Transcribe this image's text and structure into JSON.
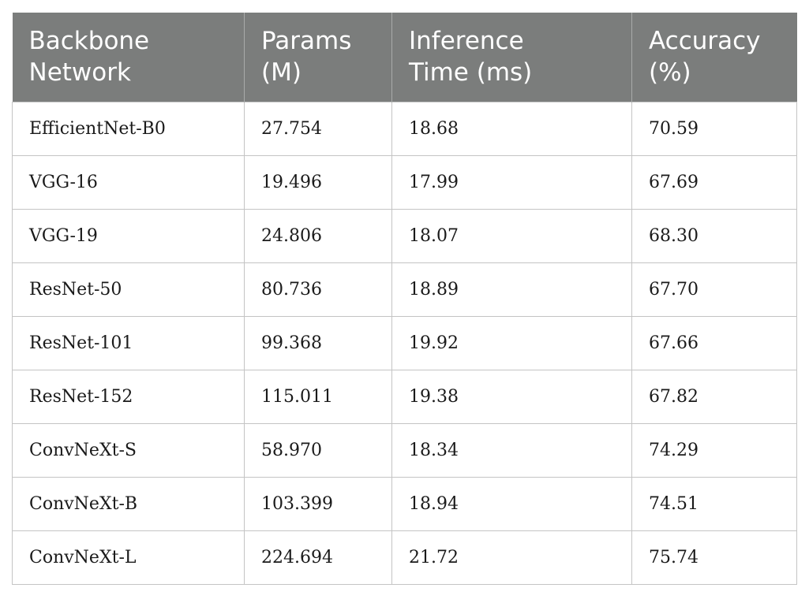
{
  "table": {
    "headers": [
      "Backbone\nNetwork",
      "Params\n(M)",
      "Inference\nTime (ms)",
      "Accuracy\n(%)"
    ],
    "rows": [
      [
        "EfficientNet-B0",
        "27.754",
        "18.68",
        "70.59"
      ],
      [
        "VGG-16",
        "19.496",
        "17.99",
        "67.69"
      ],
      [
        "VGG-19",
        "24.806",
        "18.07",
        "68.30"
      ],
      [
        "ResNet-50",
        "80.736",
        "18.89",
        "67.70"
      ],
      [
        "ResNet-101",
        "99.368",
        "19.92",
        "67.66"
      ],
      [
        "ResNet-152",
        "115.011",
        "19.38",
        "67.82"
      ],
      [
        "ConvNeXt-S",
        "58.970",
        "18.34",
        "74.29"
      ],
      [
        "ConvNeXt-B",
        "103.399",
        "18.94",
        "74.51"
      ],
      [
        "ConvNeXt-L",
        "224.694",
        "21.72",
        "75.74"
      ]
    ]
  },
  "colors": {
    "header_bg": "#7b7d7c",
    "header_text": "#ffffff",
    "grid": "#c4c4c4"
  }
}
